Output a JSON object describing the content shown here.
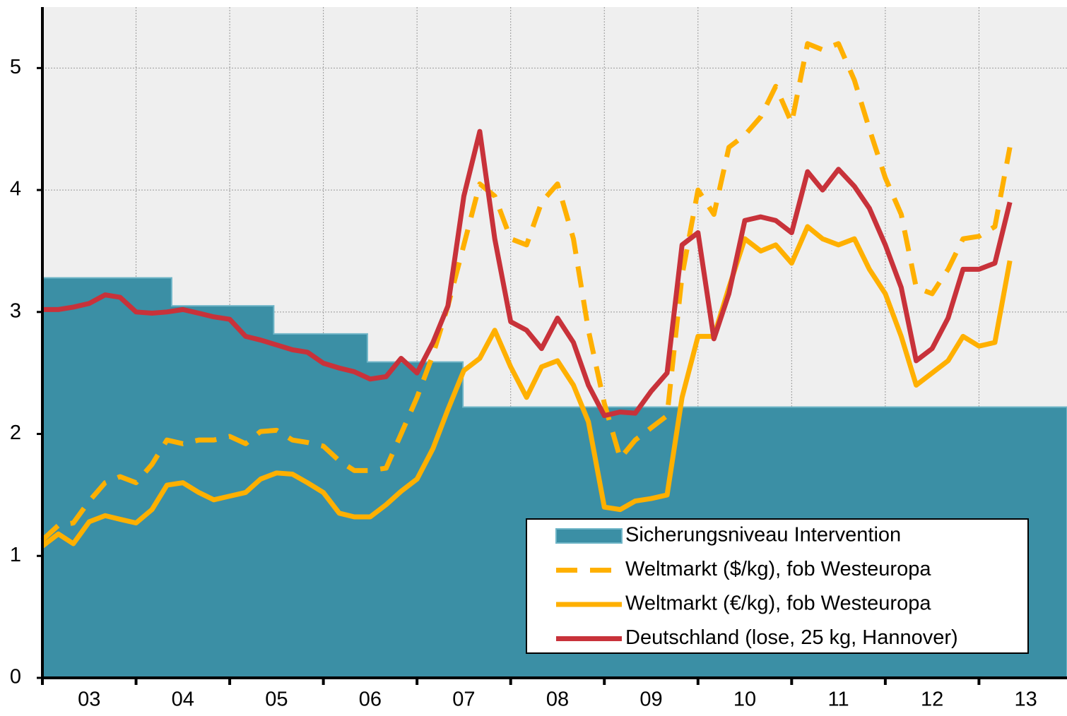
{
  "chart_data": {
    "type": "line",
    "xlim": [
      2003,
      2013.94
    ],
    "xticks": [
      2003,
      2004,
      2005,
      2006,
      2007,
      2008,
      2009,
      2010,
      2011,
      2012,
      2013
    ],
    "categories": [
      "03",
      "04",
      "05",
      "06",
      "07",
      "08",
      "09",
      "10",
      "11",
      "12",
      "13"
    ],
    "ylim": [
      0,
      5.5
    ],
    "yticks": [
      0,
      1,
      2,
      3,
      4,
      5
    ],
    "grid": true,
    "legend": "lower right",
    "x": [
      2003,
      2003.17,
      2003.33,
      2003.5,
      2003.67,
      2003.83,
      2004,
      2004.17,
      2004.33,
      2004.5,
      2004.67,
      2004.83,
      2005,
      2005.17,
      2005.33,
      2005.5,
      2005.67,
      2005.83,
      2006,
      2006.17,
      2006.33,
      2006.5,
      2006.67,
      2006.83,
      2007,
      2007.17,
      2007.33,
      2007.5,
      2007.67,
      2007.83,
      2008,
      2008.17,
      2008.33,
      2008.5,
      2008.67,
      2008.83,
      2009,
      2009.17,
      2009.33,
      2009.5,
      2009.67,
      2009.83,
      2010,
      2010.17,
      2010.33,
      2010.5,
      2010.67,
      2010.83,
      2011,
      2011.17,
      2011.33,
      2011.5,
      2011.67,
      2011.83,
      2012,
      2012.17,
      2012.33,
      2012.5,
      2012.67,
      2012.83,
      2013,
      2013.17,
      2013.33
    ],
    "series": [
      {
        "name": "Sicherungsniveau Intervention",
        "type": "area",
        "step": true,
        "color": "#3b8fa5",
        "x": [
          2003,
          2004.38,
          2005.47,
          2006.47,
          2007.49
        ],
        "values": [
          3.28,
          3.05,
          2.82,
          2.59,
          2.22
        ]
      },
      {
        "name": "Weltmarkt ($/kg), fob Westeuropa",
        "dashed": true,
        "color": "#ffb000",
        "values": [
          1.13,
          1.25,
          1.27,
          1.45,
          1.6,
          1.65,
          1.6,
          1.75,
          1.95,
          1.92,
          1.95,
          1.95,
          1.98,
          1.92,
          2.02,
          2.03,
          1.95,
          1.93,
          1.9,
          1.78,
          1.7,
          1.7,
          1.72,
          2.0,
          2.3,
          2.65,
          3.05,
          3.55,
          4.05,
          3.95,
          3.6,
          3.55,
          3.9,
          4.05,
          3.6,
          2.85,
          2.25,
          1.8,
          1.95,
          2.05,
          2.15,
          3.3,
          4.0,
          3.8,
          4.35,
          4.45,
          4.6,
          4.85,
          4.55,
          5.2,
          5.15,
          5.2,
          4.9,
          4.5,
          4.1,
          3.8,
          3.2,
          3.15,
          3.35,
          3.6,
          3.62,
          3.7,
          4.35
        ]
      },
      {
        "name": "Weltmarkt (€/kg), fob Westeuropa",
        "color": "#ffb000",
        "values": [
          1.08,
          1.18,
          1.1,
          1.28,
          1.33,
          1.3,
          1.27,
          1.38,
          1.58,
          1.6,
          1.52,
          1.46,
          1.49,
          1.52,
          1.63,
          1.68,
          1.67,
          1.6,
          1.52,
          1.35,
          1.32,
          1.32,
          1.42,
          1.53,
          1.63,
          1.88,
          2.2,
          2.52,
          2.62,
          2.85,
          2.55,
          2.3,
          2.55,
          2.6,
          2.4,
          2.1,
          1.4,
          1.38,
          1.45,
          1.47,
          1.5,
          2.3,
          2.8,
          2.8,
          3.2,
          3.6,
          3.5,
          3.55,
          3.4,
          3.7,
          3.6,
          3.55,
          3.6,
          3.35,
          3.15,
          2.8,
          2.4,
          2.5,
          2.6,
          2.8,
          2.72,
          2.75,
          3.42
        ]
      },
      {
        "name": "Deutschland (lose, 25 kg, Hannover)",
        "color": "#c8323a",
        "values": [
          3.02,
          3.02,
          3.04,
          3.07,
          3.14,
          3.12,
          3.0,
          2.99,
          3.0,
          3.02,
          2.99,
          2.96,
          2.94,
          2.8,
          2.77,
          2.73,
          2.69,
          2.67,
          2.58,
          2.54,
          2.51,
          2.45,
          2.47,
          2.62,
          2.5,
          2.75,
          3.05,
          3.95,
          4.48,
          3.6,
          2.92,
          2.85,
          2.7,
          2.95,
          2.75,
          2.4,
          2.15,
          2.18,
          2.17,
          2.35,
          2.5,
          3.55,
          3.65,
          2.78,
          3.15,
          3.75,
          3.78,
          3.75,
          3.65,
          4.15,
          4.0,
          4.17,
          4.03,
          3.85,
          3.55,
          3.2,
          2.6,
          2.7,
          2.95,
          3.35,
          3.35,
          3.4,
          3.9
        ]
      }
    ]
  }
}
